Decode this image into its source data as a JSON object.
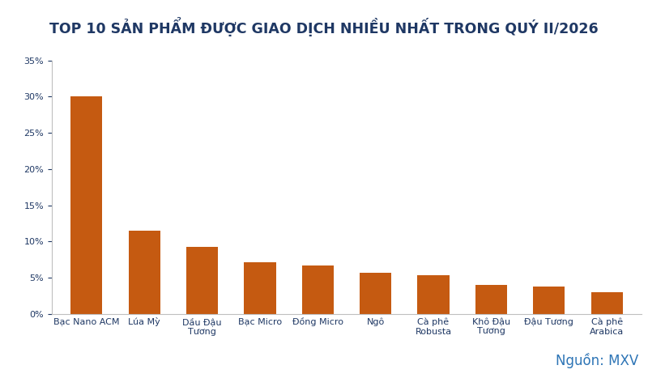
{
  "chart_data": {
    "type": "bar",
    "title": "TOP 10 SẢN PHẨM ĐƯỢC GIAO DỊCH NHIỀU NHẤT TRONG QUÝ II/2026",
    "categories": [
      "Bạc Nano ACM",
      "Lúa Mỳ",
      "Dầu Đậu Tương",
      "Bạc Micro",
      "Đồng Micro",
      "Ngô",
      "Cà phê Robusta",
      "Khô Đậu Tương",
      "Đậu Tương",
      "Cà phê Arabica"
    ],
    "values": [
      30,
      11.5,
      9.2,
      7.1,
      6.7,
      5.7,
      5.3,
      4.0,
      3.8,
      3.0
    ],
    "color": "#c55a11",
    "ylim": [
      0,
      35
    ],
    "yticks": [
      {
        "value": 0,
        "label": "0%"
      },
      {
        "value": 5,
        "label": "5%"
      },
      {
        "value": 10,
        "label": "10%"
      },
      {
        "value": 15,
        "label": "15%"
      },
      {
        "value": 20,
        "label": "20%"
      },
      {
        "value": 25,
        "label": "25%"
      },
      {
        "value": 30,
        "label": "30%"
      },
      {
        "value": 35,
        "label": "35%"
      }
    ],
    "grid": false,
    "annotation": "Nguồn: MXV"
  }
}
